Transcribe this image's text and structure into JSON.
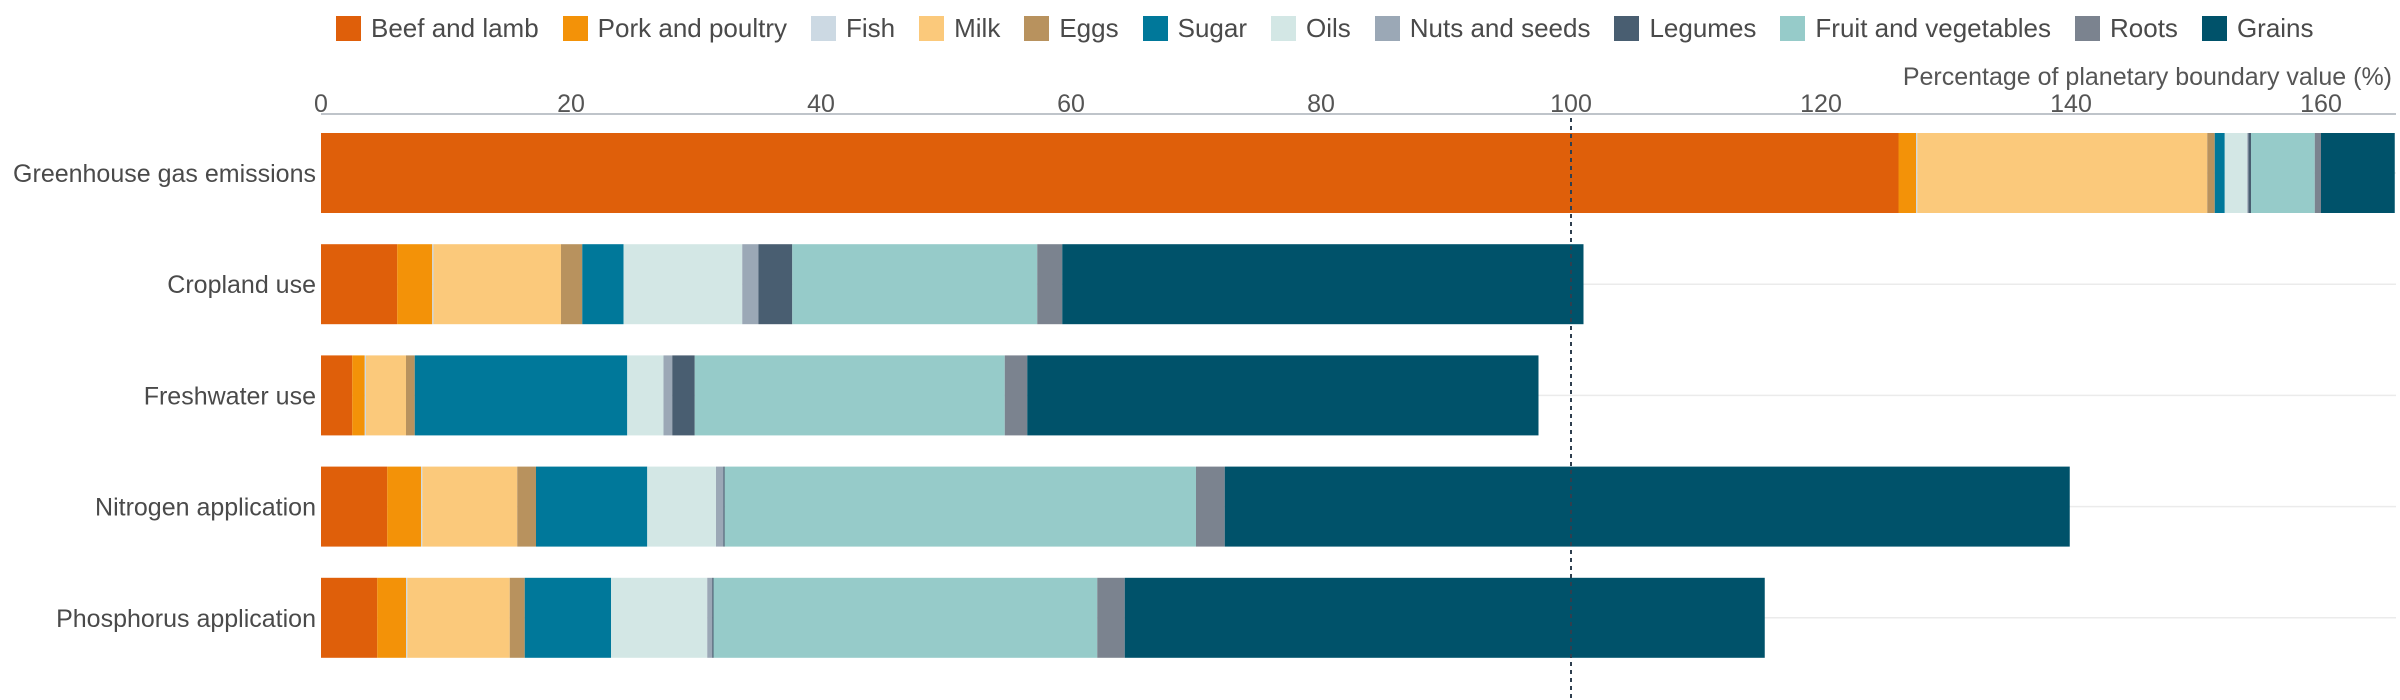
{
  "chart_data": {
    "type": "bar",
    "orientation": "horizontal",
    "stacked": true,
    "xlabel": "Percentage of planetary boundary value (%)",
    "xlim": [
      0,
      166
    ],
    "xticks": [
      0,
      20,
      40,
      60,
      80,
      100,
      120,
      140,
      160
    ],
    "reference_line": 100,
    "legend_position": "top",
    "categories": [
      "Greenhouse gas emissions",
      "Cropland use",
      "Freshwater use",
      "Nitrogen application",
      "Phosphorus application"
    ],
    "series": [
      {
        "name": "Beef and lamb",
        "color": "#df5f0a",
        "values": [
          126.2,
          6.1,
          2.5,
          5.3,
          4.5
        ]
      },
      {
        "name": "Pork and poultry",
        "color": "#f39208",
        "values": [
          1.4,
          2.8,
          1.0,
          2.7,
          2.3
        ]
      },
      {
        "name": "Fish",
        "color": "#ccd9e3",
        "values": [
          0.1,
          0.1,
          0.1,
          0.1,
          0.1
        ]
      },
      {
        "name": "Milk",
        "color": "#fbc97b",
        "values": [
          23.2,
          10.2,
          3.2,
          7.6,
          8.2
        ]
      },
      {
        "name": "Eggs",
        "color": "#b8925e",
        "values": [
          0.6,
          1.7,
          0.7,
          1.5,
          1.2
        ]
      },
      {
        "name": "Sugar",
        "color": "#00789a",
        "values": [
          0.8,
          3.3,
          17.0,
          8.9,
          6.9
        ]
      },
      {
        "name": "Oils",
        "color": "#d3e7e5",
        "values": [
          1.8,
          9.5,
          2.9,
          5.5,
          7.7
        ]
      },
      {
        "name": "Nuts and seeds",
        "color": "#9ba8b6",
        "values": [
          0.1,
          1.3,
          0.7,
          0.6,
          0.4
        ]
      },
      {
        "name": "Legumes",
        "color": "#495e71",
        "values": [
          0.2,
          2.7,
          1.8,
          0.1,
          0.1
        ]
      },
      {
        "name": "Fruit and vegetables",
        "color": "#96cbc9",
        "values": [
          5.1,
          19.6,
          24.8,
          37.7,
          30.7
        ]
      },
      {
        "name": "Roots",
        "color": "#7b838f",
        "values": [
          0.5,
          2.0,
          1.8,
          2.3,
          2.2
        ]
      },
      {
        "name": "Grains",
        "color": "#00526a",
        "values": [
          5.9,
          41.7,
          40.9,
          67.6,
          51.2
        ]
      }
    ]
  }
}
